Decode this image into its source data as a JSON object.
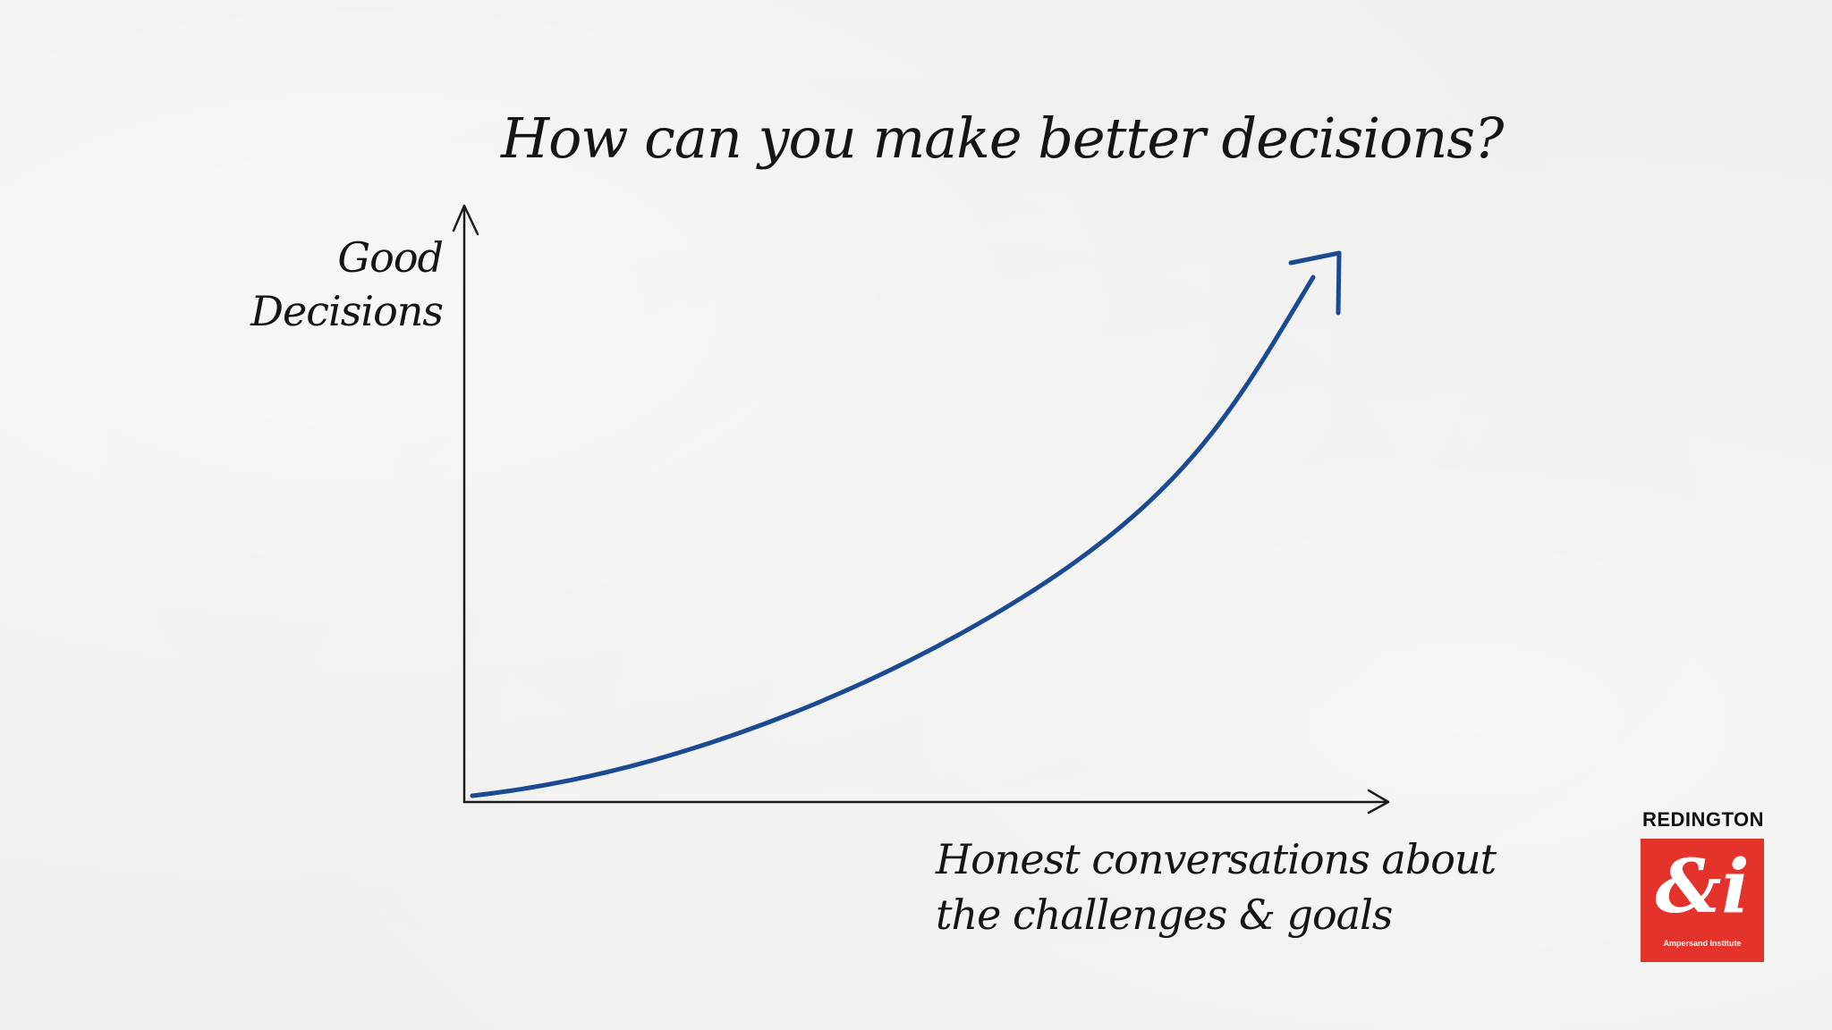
{
  "title": "How can you make better decisions?",
  "y_axis_label": [
    "Good",
    "Decisions"
  ],
  "x_axis_label": [
    "Honest conversations about",
    "the challenges & goals"
  ],
  "curve": {
    "shape": "exponential-growth",
    "color": "#1a4a93"
  },
  "axes_color": "#1c1c1c",
  "logo": {
    "wordmark": "REDINGTON",
    "glyph": "&i",
    "subtitle": "Ampersand Institute",
    "color": "#e4332b"
  }
}
